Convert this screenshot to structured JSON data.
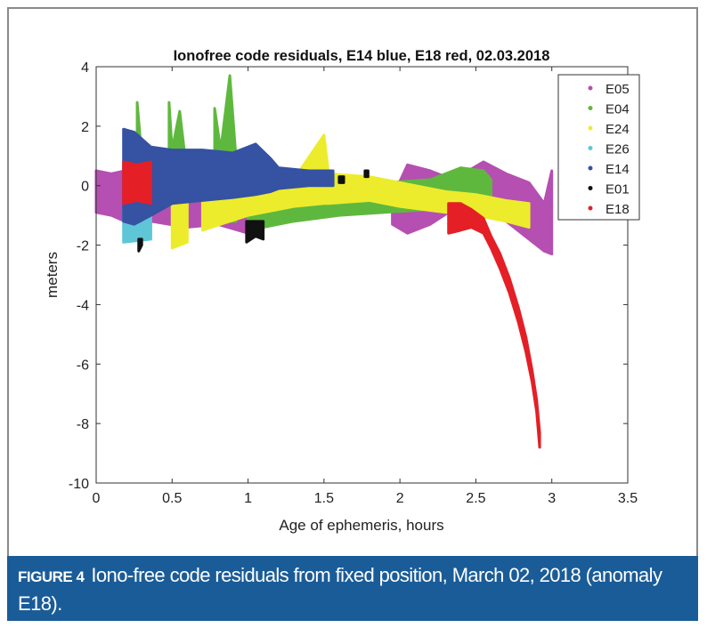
{
  "chart_data": {
    "type": "scatter",
    "title": "Ionofree code residuals, E14 blue, E18 red, 02.03.2018",
    "xlabel": "Age of ephemeris, hours",
    "ylabel": "meters",
    "xlim": [
      0,
      3.5
    ],
    "ylim": [
      -10,
      4
    ],
    "xticks": [
      "0",
      "0.5",
      "1",
      "1.5",
      "2",
      "2.5",
      "3",
      "3.5"
    ],
    "yticks": [
      "4",
      "2",
      "0",
      "-2",
      "-4",
      "-6",
      "-8",
      "-10"
    ],
    "grid": false,
    "legend_position": "top-right",
    "note": "",
    "series": [
      {
        "name": "E05",
        "color": "#b54fb2",
        "bands": [
          [
            [
              0,
              -0.9,
              0.5
            ],
            [
              0.1,
              -1.0,
              0.4
            ],
            [
              0.19,
              -1.2,
              0.5
            ]
          ],
          [
            [
              0.36,
              -1.2,
              -0.4
            ],
            [
              0.6,
              -1.4,
              -0.5
            ],
            [
              0.8,
              -1.3,
              -0.6
            ],
            [
              1.0,
              -1.6,
              -0.7
            ],
            [
              1.2,
              -1.2,
              -0.5
            ],
            [
              1.35,
              -0.9,
              -0.5
            ]
          ],
          [
            [
              1.95,
              -1.3,
              -0.4
            ],
            [
              2.05,
              -1.6,
              0.7
            ],
            [
              2.2,
              -1.3,
              0.5
            ],
            [
              2.35,
              -0.8,
              0.2
            ],
            [
              2.55,
              -1.0,
              0.8
            ],
            [
              2.7,
              -1.2,
              0.4
            ],
            [
              2.85,
              -1.8,
              0.1
            ],
            [
              2.95,
              -2.2,
              -0.6
            ],
            [
              3.0,
              -2.3,
              0.5
            ]
          ]
        ]
      },
      {
        "name": "E04",
        "color": "#5fb83e",
        "bands": [
          [
            [
              0.27,
              -0.3,
              2.8
            ],
            [
              0.3,
              -0.3,
              1.0
            ]
          ],
          [
            [
              0.48,
              -0.6,
              2.8
            ],
            [
              0.5,
              -0.6,
              1.2
            ],
            [
              0.55,
              -0.8,
              2.5
            ],
            [
              0.58,
              -0.8,
              1.2
            ]
          ],
          [
            [
              0.78,
              -1.0,
              2.6
            ],
            [
              0.82,
              -1.0,
              1.2
            ],
            [
              0.88,
              -1.2,
              3.7
            ],
            [
              0.92,
              -1.2,
              1.0
            ]
          ],
          [
            [
              1.0,
              -1.5,
              0.6
            ],
            [
              1.3,
              -1.2,
              0.3
            ],
            [
              1.6,
              -1.0,
              0.2
            ],
            [
              1.9,
              -0.9,
              0.1
            ],
            [
              2.2,
              -0.8,
              0.2
            ],
            [
              2.4,
              -0.7,
              0.6
            ],
            [
              2.55,
              -0.5,
              0.5
            ],
            [
              2.6,
              -0.6,
              0.2
            ]
          ]
        ]
      },
      {
        "name": "E24",
        "color": "#ecec2c",
        "bands": [
          [
            [
              0.5,
              -2.1,
              -0.4
            ],
            [
              0.6,
              -1.9,
              -0.3
            ]
          ],
          [
            [
              0.7,
              -1.5,
              -0.3
            ],
            [
              1.0,
              -1.0,
              0.2
            ],
            [
              1.3,
              -0.7,
              0.2
            ],
            [
              1.5,
              -0.6,
              1.7
            ],
            [
              1.53,
              -0.6,
              0.4
            ],
            [
              1.8,
              -0.5,
              0.3
            ],
            [
              2.0,
              -0.7,
              0.1
            ],
            [
              2.3,
              -0.9,
              -0.2
            ],
            [
              2.5,
              -1.0,
              -0.3
            ],
            [
              2.7,
              -1.2,
              -0.5
            ],
            [
              2.85,
              -1.4,
              -0.6
            ]
          ]
        ]
      },
      {
        "name": "E26",
        "color": "#5ec6d6",
        "bands": [
          [
            [
              0.18,
              -1.9,
              -0.8
            ],
            [
              0.36,
              -1.8,
              -0.8
            ]
          ],
          [
            [
              0.7,
              -0.3,
              0.4
            ],
            [
              0.9,
              -0.1,
              0.9
            ],
            [
              1.0,
              0.1,
              0.9
            ]
          ]
        ]
      },
      {
        "name": "E14",
        "color": "#3552a3",
        "bands": [
          [
            [
              0.18,
              -1.2,
              1.9
            ],
            [
              0.25,
              -1.3,
              1.8
            ],
            [
              0.36,
              -1.0,
              1.3
            ],
            [
              0.5,
              -0.6,
              1.2
            ],
            [
              0.7,
              -0.5,
              1.2
            ],
            [
              0.9,
              -0.4,
              1.1
            ],
            [
              1.05,
              -0.3,
              1.4
            ],
            [
              1.15,
              -0.2,
              0.9
            ],
            [
              1.2,
              -0.1,
              0.6
            ],
            [
              1.4,
              0.0,
              0.5
            ],
            [
              1.56,
              0.0,
              0.5
            ]
          ]
        ]
      },
      {
        "name": "E01",
        "color": "#111111",
        "bands": [
          [
            [
              0.28,
              -2.2,
              -1.8
            ],
            [
              0.3,
              -2.0,
              -1.8
            ]
          ],
          [
            [
              0.99,
              -1.9,
              -1.2
            ],
            [
              1.05,
              -1.7,
              -1.2
            ],
            [
              1.1,
              -1.8,
              -1.2
            ]
          ],
          [
            [
              1.6,
              0.1,
              0.3
            ],
            [
              1.63,
              0.1,
              0.3
            ]
          ],
          [
            [
              1.77,
              0.3,
              0.5
            ],
            [
              1.79,
              0.3,
              0.5
            ]
          ]
        ]
      },
      {
        "name": "E18",
        "color": "#e41f26",
        "bands": [
          [
            [
              0.18,
              -0.6,
              0.8
            ],
            [
              0.27,
              -0.5,
              0.7
            ],
            [
              0.36,
              -0.6,
              0.8
            ]
          ],
          [
            [
              2.32,
              -1.6,
              -0.6
            ],
            [
              2.4,
              -1.5,
              -0.6
            ],
            [
              2.47,
              -1.4,
              -0.8
            ],
            [
              2.55,
              -1.6,
              -1.1
            ],
            [
              2.6,
              -2.1,
              -1.7
            ],
            [
              2.66,
              -2.8,
              -2.3
            ],
            [
              2.72,
              -3.6,
              -3.1
            ],
            [
              2.78,
              -4.6,
              -4.1
            ],
            [
              2.83,
              -5.6,
              -5.1
            ],
            [
              2.87,
              -6.6,
              -6.2
            ],
            [
              2.9,
              -7.6,
              -7.2
            ],
            [
              2.92,
              -8.8,
              -8.3
            ]
          ]
        ]
      }
    ]
  },
  "caption": {
    "label": "FIGURE 4",
    "text": "Iono-free code residuals from fixed position, March 02, 2018 (anomaly E18)."
  }
}
